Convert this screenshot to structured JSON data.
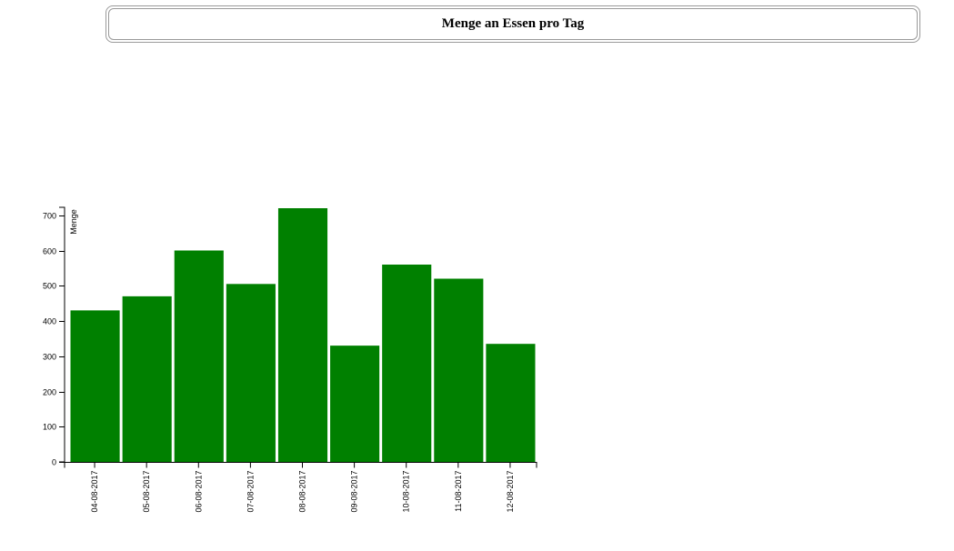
{
  "header": {
    "title": "Menge an Essen pro Tag"
  },
  "chart_data": {
    "type": "bar",
    "title": "Menge an Essen pro Tag",
    "xlabel": "",
    "ylabel": "Menge",
    "categories": [
      "04-08-2017",
      "05-08-2017",
      "06-08-2017",
      "07-08-2017",
      "08-08-2017",
      "09-08-2017",
      "10-08-2017",
      "11-08-2017",
      "12-08-2017"
    ],
    "values": [
      430,
      470,
      600,
      505,
      720,
      330,
      560,
      520,
      335
    ],
    "ylim": [
      0,
      720
    ],
    "yticks": [
      0,
      100,
      200,
      300,
      400,
      500,
      600,
      700
    ],
    "grid": false,
    "legend": "none",
    "bar_color": "#008000"
  }
}
